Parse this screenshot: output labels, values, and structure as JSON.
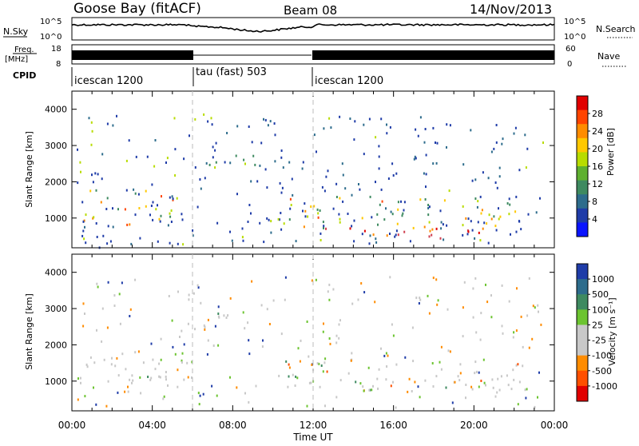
{
  "header": {
    "station": "Goose Bay (fitACF)",
    "beam": "Beam 08",
    "date": "14/Nov/2013"
  },
  "strips": {
    "nsky_label": "N.Sky",
    "nsky_ticks": [
      "10^5",
      "10^0"
    ],
    "nsearch_label": "N.Search",
    "nsearch_ticks": [
      "10^5",
      "10^0"
    ],
    "freq_label_1": "Freq.",
    "freq_label_2": "[MHz]",
    "freq_ticks": [
      "18",
      "8"
    ],
    "nave_label": "Nave",
    "nave_ticks": [
      "60",
      "0"
    ],
    "cpid_label": "CPID",
    "cpid_segments": [
      {
        "label": "icescan 1200",
        "start_h": 0,
        "end_h": 6
      },
      {
        "label": "tau (fast) 503",
        "start_h": 6,
        "end_h": 12
      },
      {
        "label": "icescan 1200",
        "start_h": 12,
        "end_h": 24
      }
    ]
  },
  "chart_data": [
    {
      "type": "heatmap",
      "panel": "power",
      "xlabel": "",
      "ylabel": "Slant Range [km]",
      "xlim": [
        0,
        24
      ],
      "ylim": [
        180,
        4500
      ],
      "yticks": [
        1000,
        2000,
        3000,
        4000
      ],
      "colorbar_label": "Power [dB]",
      "colorbar_ticks": [
        "28",
        "24",
        "20",
        "16",
        "12",
        "8",
        "4"
      ],
      "colorbar_colors": [
        "#e10000",
        "#ff4400",
        "#ff8c00",
        "#ffc800",
        "#b8dc00",
        "#5fb030",
        "#3e8a60",
        "#2d6c8c",
        "#1f3ca8",
        "#0a14ff"
      ],
      "echo_regions": [
        {
          "t0": 0.3,
          "t1": 6.0,
          "r0": 800,
          "r1": 1800,
          "note": "dense band"
        },
        {
          "t0": 0.5,
          "t1": 6.0,
          "r0": 200,
          "r1": 380,
          "note": "ground scatter strip"
        },
        {
          "t0": 6.2,
          "t1": 9.6,
          "r0": 2450,
          "r1": 2900,
          "note": "arc"
        },
        {
          "t0": 10.6,
          "t1": 22.5,
          "r0": 750,
          "r1": 1650,
          "note": "dense band"
        },
        {
          "t0": 12.5,
          "t1": 20.5,
          "r0": 400,
          "r1": 750,
          "note": "strong echoes"
        }
      ]
    },
    {
      "type": "heatmap",
      "panel": "velocity",
      "xlabel": "Time UT",
      "ylabel": "Slant Range [km]",
      "xlim": [
        0,
        24
      ],
      "ylim": [
        180,
        4500
      ],
      "yticks": [
        1000,
        2000,
        3000,
        4000
      ],
      "xticks": [
        "00:00",
        "04:00",
        "08:00",
        "12:00",
        "16:00",
        "20:00",
        "00:00"
      ],
      "colorbar_label": "Velocity [m s⁻¹]",
      "colorbar_ticks": [
        "1000",
        "500",
        "100",
        "25",
        "-25",
        "-100",
        "-500",
        "-1000"
      ],
      "colorbar_colors": [
        "#1f3ca8",
        "#2d6c8c",
        "#3e8a60",
        "#6cc430",
        "#c8c8c8",
        "#c8c8c8",
        "#ff8c00",
        "#ff5000",
        "#e10000"
      ],
      "echo_regions": [
        {
          "t0": 0.3,
          "t1": 6.0,
          "r0": 800,
          "r1": 1800,
          "note": "mostly near zero"
        },
        {
          "t0": 6.2,
          "t1": 9.6,
          "r0": 2450,
          "r1": 2900,
          "note": "near zero"
        },
        {
          "t0": 10.6,
          "t1": 22.5,
          "r0": 750,
          "r1": 1650,
          "note": "mostly near zero, green/orange patches"
        }
      ]
    }
  ]
}
